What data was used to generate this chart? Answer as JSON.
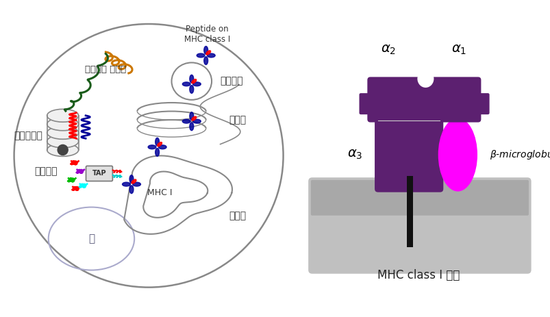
{
  "bg_color": "#ffffff",
  "purple_color": "#5C2070",
  "magenta_color": "#FF00FF",
  "membrane_light": "#BEBEBE",
  "membrane_dark": "#A0A0A0",
  "cell_border": "#888888",
  "nucleus_border": "#AAAACC",
  "dark_gray": "#888888",
  "title_right": "MHC class I 구조",
  "label_alpha2": "α",
  "label_alpha1": "α",
  "label_alpha3": "α",
  "label_beta": "β-microglobulin",
  "label_cell_protein": "세포내의 단백질",
  "label_proteasome": "프로테오준",
  "label_peptide": "펝타이드",
  "label_nucleus": "핵",
  "label_secretory": "분비소포",
  "label_golgi": "골지체",
  "label_er": "소포체",
  "label_mhc1": "MHC I",
  "label_tap": "TAP",
  "label_peptide_mhc": "Peptide on\nMHC class I"
}
